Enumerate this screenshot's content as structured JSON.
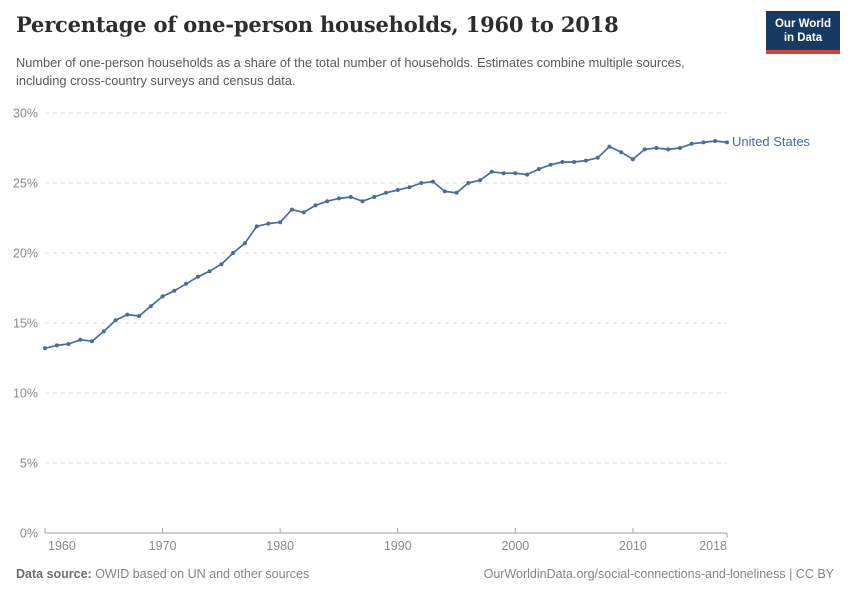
{
  "header": {
    "title": "Percentage of one-person households, 1960 to 2018",
    "subtitle": "Number of one-person households as a share of the total number of households. Estimates combine multiple sources, including cross-country surveys and census data.",
    "logo": {
      "line1": "Our World",
      "line2": "in Data"
    }
  },
  "legend": {
    "label": "United States"
  },
  "footer": {
    "source_label": "Data source:",
    "source_text": " OWID based on UN and other sources",
    "credit": "OurWorldinData.org/social-connections-and-loneliness | CC BY"
  },
  "colors": {
    "series_blue": "#4C6A9C",
    "gridline": "#dedede",
    "axis": "#a3a3a3",
    "tick_label": "#8a8a8a",
    "logo_navy": "#173a63",
    "logo_red": "#d73f34"
  },
  "chart_data": {
    "type": "line",
    "title": "Percentage of one-person households, 1960 to 2018",
    "xlabel": "",
    "ylabel": "",
    "ylim": [
      0,
      30
    ],
    "yticks": [
      0,
      5,
      10,
      15,
      20,
      25,
      30
    ],
    "ytick_labels": [
      "0%",
      "5%",
      "10%",
      "15%",
      "20%",
      "25%",
      "30%"
    ],
    "xticks": [
      1960,
      1970,
      1980,
      1990,
      2000,
      2010,
      2018
    ],
    "grid": "dashed-horizontal",
    "legend_position": "right-of-line-end",
    "x": [
      1960,
      1961,
      1962,
      1963,
      1964,
      1965,
      1966,
      1967,
      1968,
      1969,
      1970,
      1971,
      1972,
      1973,
      1974,
      1975,
      1976,
      1977,
      1978,
      1979,
      1980,
      1981,
      1982,
      1983,
      1984,
      1985,
      1986,
      1987,
      1988,
      1989,
      1990,
      1991,
      1992,
      1993,
      1994,
      1995,
      1996,
      1997,
      1998,
      1999,
      2000,
      2001,
      2002,
      2003,
      2004,
      2005,
      2006,
      2007,
      2008,
      2009,
      2010,
      2011,
      2012,
      2013,
      2014,
      2015,
      2016,
      2017,
      2018
    ],
    "series": [
      {
        "name": "United States",
        "color": "#4C6A9C",
        "values": [
          13.2,
          13.4,
          13.5,
          13.8,
          13.7,
          14.4,
          15.2,
          15.6,
          15.5,
          16.2,
          16.9,
          17.3,
          17.8,
          18.3,
          18.7,
          19.2,
          20.0,
          20.7,
          21.9,
          22.1,
          22.2,
          23.1,
          22.9,
          23.4,
          23.7,
          23.9,
          24.0,
          23.7,
          24.0,
          24.3,
          24.5,
          24.7,
          25.0,
          25.1,
          24.4,
          24.3,
          25.0,
          25.2,
          25.8,
          25.7,
          25.7,
          25.6,
          26.0,
          26.3,
          26.5,
          26.5,
          26.6,
          26.8,
          27.6,
          27.2,
          26.7,
          27.4,
          27.5,
          27.4,
          27.5,
          27.8,
          27.9,
          28.0,
          27.9
        ]
      }
    ]
  }
}
